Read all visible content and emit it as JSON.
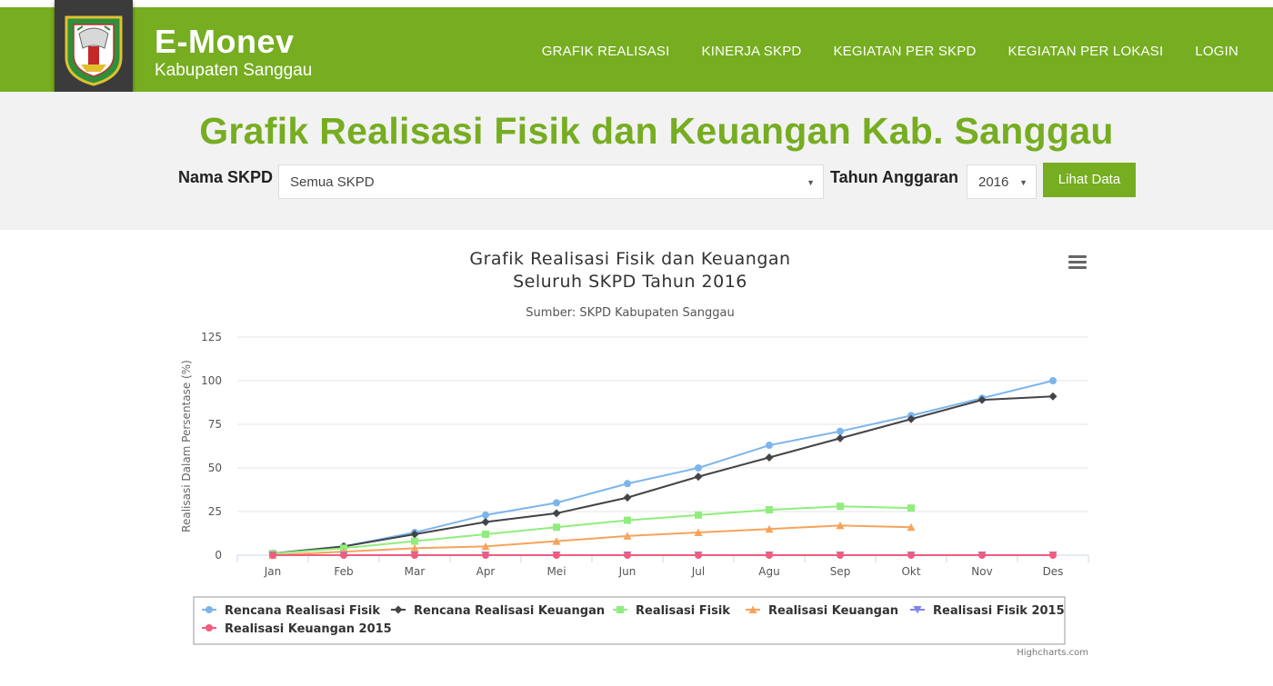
{
  "header": {
    "app_title": "E-Monev",
    "app_subtitle": "Kabupaten Sanggau",
    "nav": [
      {
        "label": "GRAFIK REALISASI"
      },
      {
        "label": "KINERJA SKPD"
      },
      {
        "label": "KEGIATAN PER SKPD"
      },
      {
        "label": "KEGIATAN PER LOKASI"
      },
      {
        "label": "LOGIN"
      }
    ]
  },
  "filters": {
    "page_title": "Grafik Realisasi Fisik dan Keuangan Kab. Sanggau",
    "skpd_label": "Nama SKPD",
    "skpd_value": "Semua SKPD",
    "tahun_label": "Tahun Anggaran",
    "tahun_value": "2016",
    "submit_label": "Lihat Data"
  },
  "chart_data": {
    "type": "line",
    "title_line1": "Grafik Realisasi Fisik dan Keuangan",
    "title_line2": "Seluruh SKPD Tahun 2016",
    "subtitle": "Sumber: SKPD Kabupaten Sanggau",
    "ylabel": "Realisasi Dalam Persentase (%)",
    "ylim": [
      0,
      125
    ],
    "yticks": [
      0,
      25,
      50,
      75,
      100,
      125
    ],
    "categories": [
      "Jan",
      "Feb",
      "Mar",
      "Apr",
      "Mei",
      "Jun",
      "Jul",
      "Agu",
      "Sep",
      "Okt",
      "Nov",
      "Des"
    ],
    "grid": true,
    "legend_position": "bottom",
    "credits": "Highcharts.com",
    "series": [
      {
        "name": "Rencana Realisasi Fisik",
        "color": "#7cb5ec",
        "marker": "circle",
        "values": [
          1,
          5,
          13,
          23,
          30,
          41,
          50,
          63,
          71,
          80,
          90,
          100
        ]
      },
      {
        "name": "Rencana Realisasi Keuangan",
        "color": "#434348",
        "marker": "diamond",
        "values": [
          1,
          5,
          12,
          19,
          24,
          33,
          45,
          56,
          67,
          78,
          89,
          91
        ]
      },
      {
        "name": "Realisasi Fisik",
        "color": "#90ed7d",
        "marker": "square",
        "values": [
          1,
          4,
          8,
          12,
          16,
          20,
          23,
          26,
          28,
          27,
          null,
          null
        ]
      },
      {
        "name": "Realisasi Keuangan",
        "color": "#f7a35c",
        "marker": "triangle",
        "values": [
          0,
          2,
          4,
          5,
          8,
          11,
          13,
          15,
          17,
          16,
          null,
          null
        ]
      },
      {
        "name": "Realisasi Fisik 2015",
        "color": "#8085e9",
        "marker": "triangle-down",
        "values": [
          0,
          0,
          0,
          0,
          0,
          0,
          0,
          0,
          0,
          0,
          0,
          0
        ]
      },
      {
        "name": "Realisasi Keuangan 2015",
        "color": "#f15c80",
        "marker": "circle",
        "values": [
          0,
          0,
          0,
          0,
          0,
          0,
          0,
          0,
          0,
          0,
          0,
          0
        ]
      }
    ]
  }
}
